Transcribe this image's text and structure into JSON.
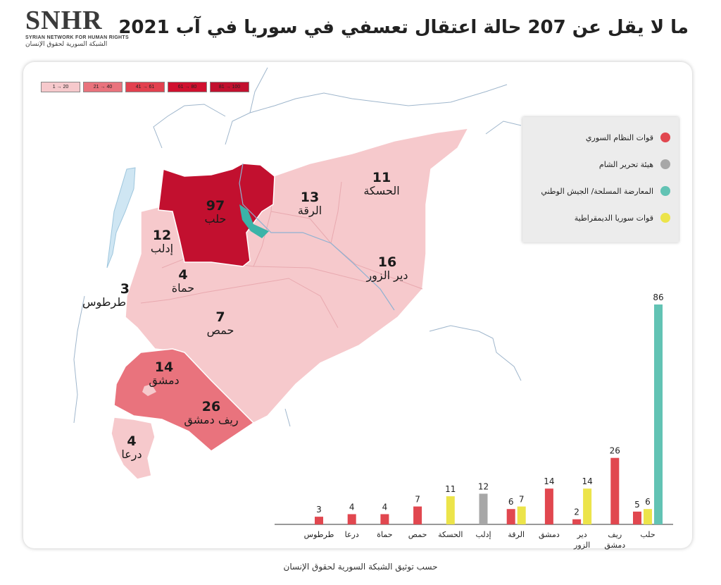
{
  "logo": {
    "main": "SNHR",
    "sub": "SYRIAN NETWORK FOR HUMAN RIGHTS",
    "ar": "الشبكة السورية لحقوق الإنسان"
  },
  "title": "ما لا يقل عن 207 حالة اعتقال تعسفي في سوريا في آب 2021",
  "scale": [
    "1 → 20",
    "21 → 40",
    "41 → 61",
    "61 → 80",
    "81 → 100"
  ],
  "scale_colors": [
    "#f6c9cc",
    "#e9737d",
    "#e2414f",
    "#d0102f",
    "#c2102f"
  ],
  "legend": {
    "items": [
      {
        "label": "قوات النظام السوري",
        "color": "#e1474f"
      },
      {
        "label": "هيئة تحرير الشام",
        "color": "#a7a7a7"
      },
      {
        "label": "المعارضة المسلحة/ الجيش الوطني",
        "color": "#62c3b4"
      },
      {
        "label": "قوات سوريا الديمقراطية",
        "color": "#ece44a"
      }
    ]
  },
  "map": {
    "regions": [
      {
        "name": "حلب",
        "value": "97"
      },
      {
        "name": "الرقة",
        "value": "13"
      },
      {
        "name": "الحسكة",
        "value": "11"
      },
      {
        "name": "إدلب",
        "value": "12"
      },
      {
        "name": "حماة",
        "value": "4"
      },
      {
        "name": "طرطوس",
        "value": "3"
      },
      {
        "name": "دير الزور",
        "value": "16"
      },
      {
        "name": "حمص",
        "value": "7"
      },
      {
        "name": "دمشق",
        "value": "14"
      },
      {
        "name": "ريف دمشق",
        "value": "26"
      },
      {
        "name": "درعا",
        "value": "4"
      }
    ]
  },
  "chart_data": {
    "type": "bar",
    "categories": [
      "حلب",
      "ريف دمشق",
      "دير الزور",
      "دمشق",
      "الرقة",
      "إدلب",
      "الحسكة",
      "حمص",
      "حماة",
      "درعا",
      "طرطوس"
    ],
    "series": [
      {
        "color": "#e1474f",
        "values": [
          5,
          26,
          2,
          14,
          6,
          0,
          0,
          7,
          4,
          4,
          3
        ]
      },
      {
        "color": "#ece44a",
        "values": [
          6,
          0,
          14,
          0,
          7,
          0,
          11,
          0,
          0,
          0,
          0
        ]
      },
      {
        "color": "#a7a7a7",
        "values": [
          0,
          0,
          0,
          0,
          0,
          12,
          0,
          0,
          0,
          0,
          0
        ]
      },
      {
        "color": "#62c3b4",
        "values": [
          86,
          0,
          0,
          0,
          0,
          0,
          0,
          0,
          0,
          0,
          0
        ]
      }
    ],
    "ylim": [
      0,
      86
    ]
  },
  "source": "حسب توثيق الشبكة السورية لحقوق الإنسان"
}
